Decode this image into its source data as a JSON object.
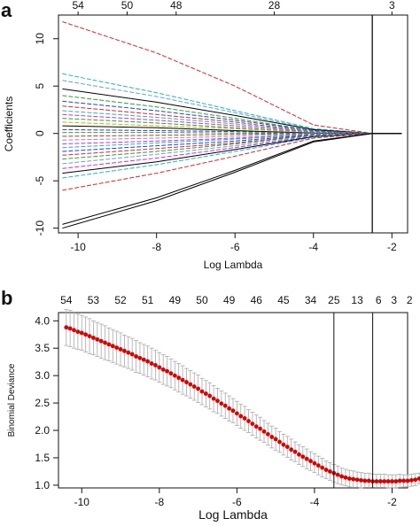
{
  "chart_data": [
    {
      "panel": "a",
      "type": "line",
      "xlabel": "Log Lambda",
      "ylabel": "Coefficients",
      "xlim": [
        -10.5,
        -1.6
      ],
      "ylim": [
        -10.5,
        12.5
      ],
      "x_ticks": [
        "-10",
        "-8",
        "-6",
        "-4",
        "-2"
      ],
      "y_ticks": [
        "-10",
        "-5",
        "0",
        "5",
        "10"
      ],
      "top_axis_labels": [
        "54",
        "50",
        "48",
        "28",
        "3"
      ],
      "top_axis_positions": [
        -10,
        -8.75,
        -7.5,
        -5.0,
        -2.0
      ],
      "vline": -2.5,
      "path_x": [
        -10.4,
        -8.0,
        -6.0,
        -4.0,
        -2.5,
        -1.75
      ],
      "series": [
        {
          "color": "#d62728",
          "values": [
            11.8,
            8.5,
            5.0,
            0.9,
            0.0,
            0.0
          ]
        },
        {
          "color": "#1fb5b5",
          "values": [
            6.3,
            4.3,
            2.4,
            0.5,
            0.0,
            0.0
          ]
        },
        {
          "color": "#6b9bd6",
          "values": [
            5.6,
            3.9,
            2.2,
            0.4,
            0.0,
            0.0
          ]
        },
        {
          "color": "#000000",
          "values": [
            4.7,
            3.3,
            1.9,
            0.4,
            0.0,
            0.0
          ]
        },
        {
          "color": "#2ca02c",
          "values": [
            4.0,
            2.8,
            1.6,
            0.3,
            0.0,
            0.0
          ]
        },
        {
          "color": "#1f3fd6",
          "values": [
            3.4,
            2.4,
            1.4,
            0.3,
            0.0,
            0.0
          ]
        },
        {
          "color": "#d62728",
          "values": [
            2.9,
            2.0,
            1.2,
            0.2,
            0.0,
            0.0
          ]
        },
        {
          "color": "#1fb5b5",
          "values": [
            2.4,
            1.7,
            1.0,
            0.2,
            0.0,
            0.0
          ]
        },
        {
          "color": "#d62ad6",
          "values": [
            2.0,
            1.4,
            0.8,
            0.15,
            0.0,
            0.0
          ]
        },
        {
          "color": "#2ca02c",
          "values": [
            1.6,
            1.1,
            0.6,
            0.1,
            0.0,
            0.0
          ]
        },
        {
          "color": "#b8b800",
          "values": [
            1.2,
            0.8,
            0.5,
            0.1,
            0.0,
            0.0
          ]
        },
        {
          "color": "#000000",
          "values": [
            0.8,
            0.6,
            0.3,
            0.05,
            0.0,
            0.0
          ]
        },
        {
          "color": "#1f3fd6",
          "values": [
            0.4,
            0.3,
            0.2,
            0.05,
            0.0,
            0.0
          ]
        },
        {
          "color": "#2ca02c",
          "values": [
            0.1,
            0.1,
            0.05,
            0.0,
            0.0,
            0.0
          ]
        },
        {
          "color": "#d62728",
          "values": [
            -0.3,
            -0.2,
            -0.1,
            0.0,
            0.0,
            0.0
          ]
        },
        {
          "color": "#6b9bd6",
          "values": [
            -0.7,
            -0.5,
            -0.3,
            -0.05,
            0.0,
            0.0
          ]
        },
        {
          "color": "#d62ad6",
          "values": [
            -1.1,
            -0.8,
            -0.5,
            -0.1,
            0.0,
            0.0
          ]
        },
        {
          "color": "#1fb5b5",
          "values": [
            -1.5,
            -1.0,
            -0.6,
            -0.1,
            0.0,
            0.0
          ]
        },
        {
          "color": "#1f3fd6",
          "values": [
            -1.9,
            -1.3,
            -0.8,
            -0.15,
            0.0,
            0.0
          ]
        },
        {
          "color": "#d62728",
          "values": [
            -2.3,
            -1.6,
            -1.0,
            -0.2,
            0.0,
            0.0
          ]
        },
        {
          "color": "#2ca02c",
          "values": [
            -2.7,
            -1.9,
            -1.1,
            -0.2,
            0.0,
            0.0
          ]
        },
        {
          "color": "#6b9bd6",
          "values": [
            -3.2,
            -2.2,
            -1.3,
            -0.25,
            0.0,
            0.0
          ]
        },
        {
          "color": "#d62ad6",
          "values": [
            -3.7,
            -2.6,
            -1.5,
            -0.3,
            0.0,
            0.0
          ]
        },
        {
          "color": "#000000",
          "values": [
            -4.2,
            -3.0,
            -1.7,
            -0.35,
            0.0,
            0.0
          ]
        },
        {
          "color": "#1fb5b5",
          "values": [
            -4.7,
            -3.3,
            -1.9,
            -0.4,
            0.0,
            0.0
          ]
        },
        {
          "color": "#d62728",
          "values": [
            -6.0,
            -4.2,
            -2.4,
            -0.5,
            0.0,
            0.0
          ]
        },
        {
          "color": "#000000",
          "values": [
            -9.6,
            -6.8,
            -3.9,
            -0.8,
            0.0,
            0.0
          ]
        },
        {
          "color": "#000000",
          "values": [
            -10.0,
            -7.1,
            -4.1,
            -0.9,
            0.0,
            0.0
          ]
        }
      ]
    },
    {
      "panel": "b",
      "type": "scatter",
      "xlabel": "Log Lambda",
      "ylabel": "Binomial Deviance",
      "xlim": [
        -10.6,
        -1.6
      ],
      "ylim": [
        0.95,
        4.15
      ],
      "x_ticks": [
        "-10",
        "-8",
        "-6",
        "-4",
        "-2"
      ],
      "y_ticks": [
        "1.0",
        "1.5",
        "2.0",
        "2.5",
        "3.0",
        "3.5",
        "4.0"
      ],
      "top_axis_labels": [
        "54",
        "53",
        "52",
        "51",
        "49",
        "50",
        "49",
        "46",
        "45",
        "34",
        "25",
        "13",
        "6",
        "3",
        "2"
      ],
      "top_axis_positions": [
        -10.4,
        -9.7,
        -9.0,
        -8.3,
        -7.6,
        -6.9,
        -6.2,
        -5.5,
        -4.8,
        -4.1,
        -3.5,
        -2.9,
        -2.35,
        -1.95,
        -1.55
      ],
      "vlines": [
        -3.5,
        -2.5
      ],
      "x_start": -10.4,
      "x_step": 0.1,
      "deviance": [
        3.88,
        3.86,
        3.83,
        3.8,
        3.78,
        3.75,
        3.72,
        3.69,
        3.66,
        3.63,
        3.6,
        3.57,
        3.54,
        3.51,
        3.48,
        3.45,
        3.42,
        3.39,
        3.35,
        3.32,
        3.29,
        3.26,
        3.22,
        3.19,
        3.15,
        3.11,
        3.08,
        3.04,
        3.0,
        2.96,
        2.92,
        2.88,
        2.84,
        2.8,
        2.76,
        2.71,
        2.67,
        2.63,
        2.58,
        2.54,
        2.49,
        2.45,
        2.4,
        2.36,
        2.31,
        2.26,
        2.22,
        2.17,
        2.12,
        2.07,
        2.03,
        1.98,
        1.93,
        1.88,
        1.84,
        1.79,
        1.74,
        1.7,
        1.65,
        1.61,
        1.56,
        1.52,
        1.48,
        1.44,
        1.4,
        1.36,
        1.32,
        1.28,
        1.25,
        1.22,
        1.19,
        1.16,
        1.14,
        1.12,
        1.11,
        1.1,
        1.09,
        1.08,
        1.08,
        1.07,
        1.07,
        1.07,
        1.07,
        1.07,
        1.07,
        1.07,
        1.08,
        1.08,
        1.08,
        1.09,
        1.1,
        1.12,
        1.15,
        1.2,
        1.25,
        1.3,
        1.35
      ],
      "error_half_width": [
        0.33,
        0.33,
        0.33,
        0.32,
        0.32,
        0.32,
        0.32,
        0.31,
        0.31,
        0.31,
        0.31,
        0.3,
        0.3,
        0.3,
        0.3,
        0.29,
        0.29,
        0.29,
        0.29,
        0.28,
        0.28,
        0.28,
        0.28,
        0.27,
        0.27,
        0.27,
        0.27,
        0.26,
        0.26,
        0.26,
        0.26,
        0.25,
        0.25,
        0.25,
        0.25,
        0.24,
        0.24,
        0.24,
        0.24,
        0.23,
        0.23,
        0.23,
        0.23,
        0.22,
        0.22,
        0.22,
        0.22,
        0.21,
        0.21,
        0.21,
        0.21,
        0.2,
        0.2,
        0.2,
        0.2,
        0.19,
        0.19,
        0.19,
        0.19,
        0.18,
        0.18,
        0.18,
        0.18,
        0.17,
        0.17,
        0.17,
        0.17,
        0.16,
        0.16,
        0.16,
        0.16,
        0.15,
        0.15,
        0.15,
        0.15,
        0.14,
        0.14,
        0.14,
        0.14,
        0.13,
        0.13,
        0.13,
        0.13,
        0.12,
        0.12,
        0.12,
        0.12,
        0.11,
        0.11,
        0.11,
        0.11,
        0.1,
        0.1,
        0.1,
        0.1,
        0.09,
        0.09
      ]
    }
  ],
  "panel_labels": {
    "a": "a",
    "b": "b"
  },
  "colors": {
    "point": "#d40000",
    "errorbar": "#a8a8a8",
    "axis": "#111111"
  }
}
